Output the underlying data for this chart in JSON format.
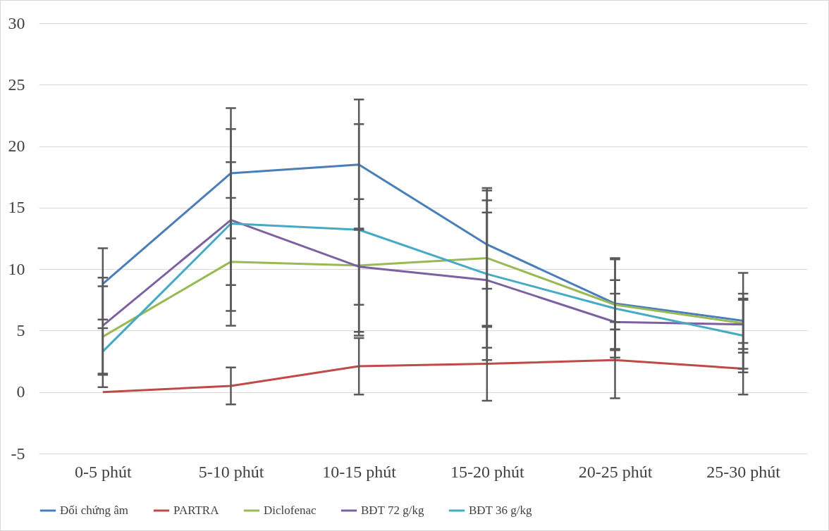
{
  "chart_data": {
    "type": "line",
    "categories": [
      "0-5 phút",
      "5-10 phút",
      "10-15 phút",
      "15-20 phút",
      "20-25 phút",
      "25-30 phút"
    ],
    "ylim": [
      -5,
      30
    ],
    "yticks": [
      -5,
      0,
      5,
      10,
      15,
      20,
      25,
      30
    ],
    "grid": "y",
    "legend": "bottom",
    "marker": "none",
    "line_style": "solid",
    "series": [
      {
        "name": "Đối chứng âm",
        "color": "#4a7ebb",
        "values": [
          8.8,
          17.8,
          18.5,
          12.0,
          7.2,
          5.8
        ],
        "errors": [
          2.9,
          5.3,
          5.3,
          3.6,
          3.7,
          3.9
        ]
      },
      {
        "name": "PARTRA",
        "color": "#be4b48",
        "values": [
          0,
          0.5,
          2.1,
          2.3,
          2.6,
          1.9
        ],
        "errors": [
          null,
          1.5,
          2.3,
          3.0,
          3.1,
          2.1
        ]
      },
      {
        "name": "Diclofenac",
        "color": "#98b954",
        "values": [
          4.5,
          10.6,
          10.3,
          10.9,
          7.1,
          5.6
        ],
        "errors": [
          4.1,
          5.2,
          5.4,
          5.5,
          2.0,
          2.4
        ]
      },
      {
        "name": "BĐT 72 g/kg",
        "color": "#7d60a0",
        "values": [
          5.4,
          14.0,
          10.2,
          9.1,
          5.7,
          5.5
        ],
        "errors": [
          3.9,
          7.4,
          3.1,
          5.5,
          2.3,
          2.0
        ]
      },
      {
        "name": "BĐT 36 g/kg",
        "color": "#46aac5",
        "values": [
          3.3,
          13.7,
          13.2,
          9.6,
          6.8,
          4.6
        ],
        "errors": [
          1.9,
          5.0,
          8.6,
          7.0,
          4.0,
          3.0
        ]
      }
    ]
  }
}
